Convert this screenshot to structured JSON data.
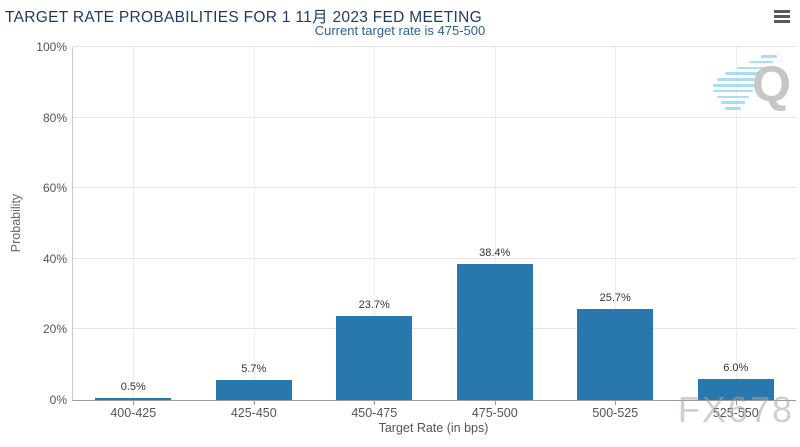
{
  "chart_data": {
    "type": "bar",
    "title": "TARGET RATE PROBABILITIES FOR 1 11月 2023 FED MEETING",
    "subtitle": "Current target rate is 475-500",
    "categories": [
      "400-425",
      "425-450",
      "450-475",
      "475-500",
      "500-525",
      "525-550"
    ],
    "values": [
      0.5,
      5.7,
      23.7,
      38.4,
      25.7,
      6.0
    ],
    "value_labels": [
      "0.5%",
      "5.7%",
      "23.7%",
      "38.4%",
      "25.7%",
      "6.0%"
    ],
    "xlabel": "Target Rate (in bps)",
    "ylabel": "Probability",
    "ylim": [
      0,
      100
    ],
    "ytick_step": 20,
    "ytick_labels": [
      "0%",
      "20%",
      "40%",
      "60%",
      "80%",
      "100%"
    ],
    "grid": true,
    "legend": "none",
    "bar_color": "#2878ae",
    "title_color": "#1e3a5f",
    "subtitle_color": "#2e5f93"
  },
  "menu": {
    "icon": "hamburger"
  },
  "watermark": {
    "text": "FX678",
    "color": "#aea69e"
  },
  "logo": {
    "letter": "Q",
    "letter_color": "#c6c6c6",
    "stripe_color": "#a9dcf5"
  }
}
